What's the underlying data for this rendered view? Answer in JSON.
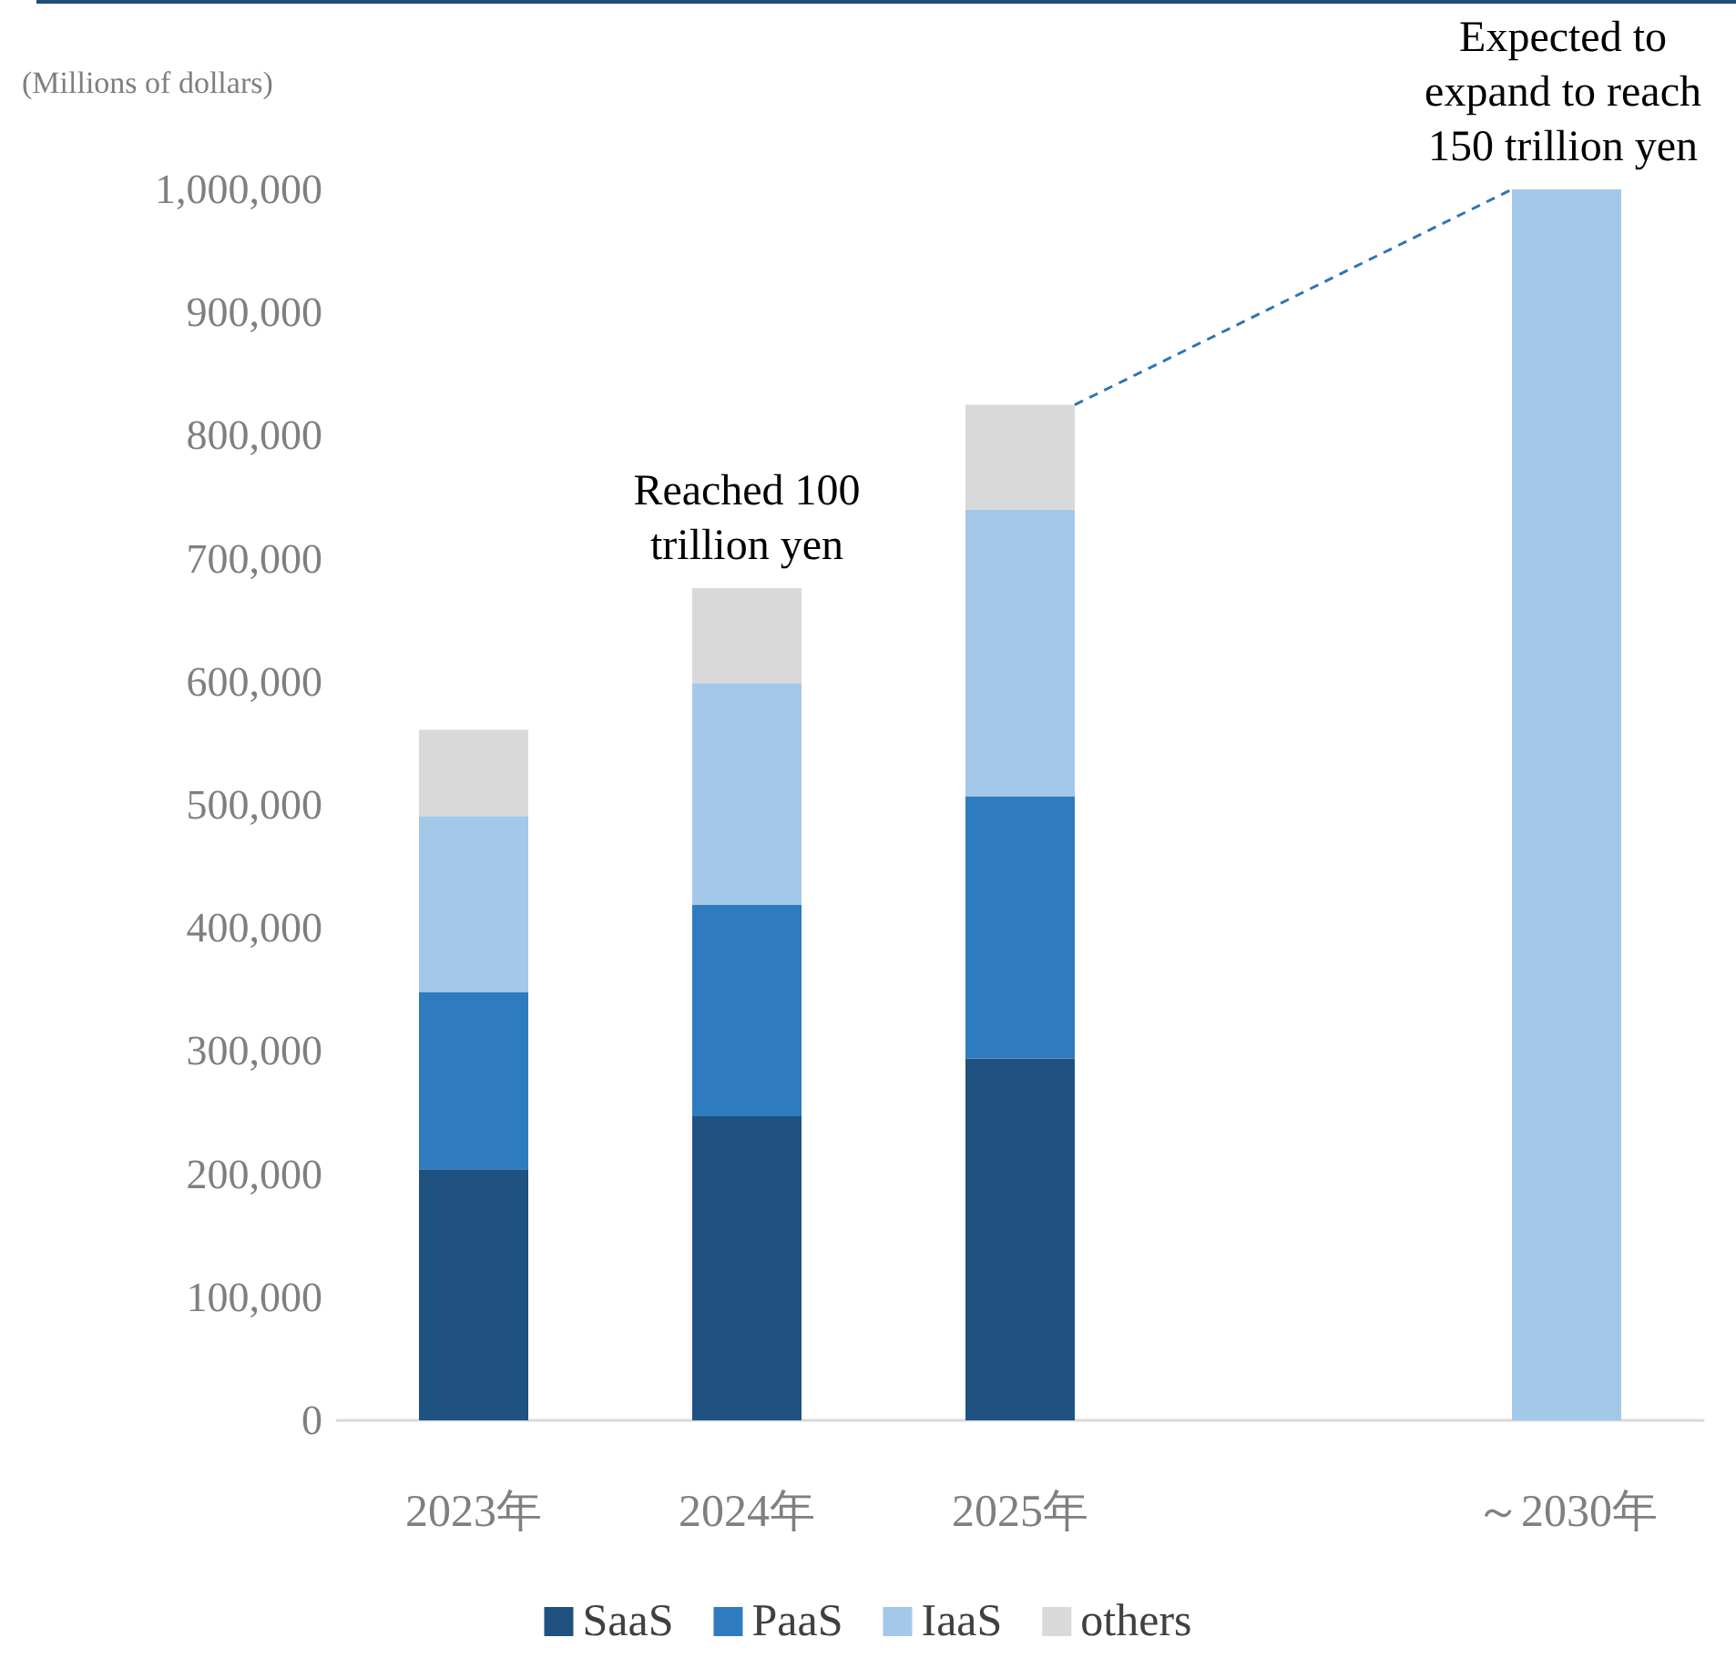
{
  "chart_data": {
    "type": "bar",
    "stacked": true,
    "ylabel": "(Millions of dollars)",
    "categories": [
      "2023年",
      "2024年",
      "2025年",
      null,
      "～2030年"
    ],
    "series": [
      {
        "name": "SaaS",
        "color": "#1f5280",
        "values": [
          204000,
          247000,
          294000,
          null,
          null
        ]
      },
      {
        "name": "PaaS",
        "color": "#2e7bc0",
        "values": [
          144000,
          172000,
          213000,
          null,
          null
        ]
      },
      {
        "name": "IaaS",
        "color": "#a4c8e8",
        "values": [
          143000,
          180000,
          233000,
          null,
          null
        ]
      },
      {
        "name": "others",
        "color": "#d9d9d9",
        "values": [
          70000,
          77000,
          85000,
          null,
          null
        ]
      },
      {
        "color": "#a4c8e8",
        "values": [
          null,
          null,
          null,
          null,
          1000000
        ]
      }
    ],
    "ylim": [
      0,
      1000000
    ],
    "yticks": [
      0,
      {
        "value": 100000,
        "label": "100,000"
      },
      {
        "value": 200000,
        "label": "200,000"
      },
      {
        "value": 300000,
        "label": "300,000"
      },
      {
        "value": 400000,
        "label": "400,000"
      },
      {
        "value": 500000,
        "label": "500,000"
      },
      {
        "value": 600000,
        "label": "600,000"
      },
      {
        "value": 700000,
        "label": "700,000"
      },
      {
        "value": 800000,
        "label": "800,000"
      },
      {
        "value": 900000,
        "label": "900,000"
      },
      {
        "value": 1000000,
        "label": "1,000,000"
      }
    ],
    "grid": false,
    "legend": "bottom",
    "annotations": [
      {
        "text": "Reached 100 trillion yen",
        "x": "2024年",
        "y": 676000
      },
      {
        "text": "Expected to expand to reach 150 trillion yen",
        "x": "～2030年",
        "y": 1000000
      }
    ]
  }
}
